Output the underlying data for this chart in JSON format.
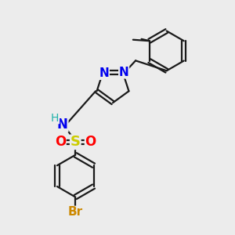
{
  "bg_color": "#ececec",
  "bond_color": "#1a1a1a",
  "bond_width": 1.6,
  "atom_colors": {
    "N": "#0000ee",
    "H": "#20b2aa",
    "S": "#cccc00",
    "O": "#ff0000",
    "Br": "#cc8800",
    "C": "#1a1a1a"
  },
  "figsize": [
    3.0,
    3.0
  ],
  "dpi": 100
}
